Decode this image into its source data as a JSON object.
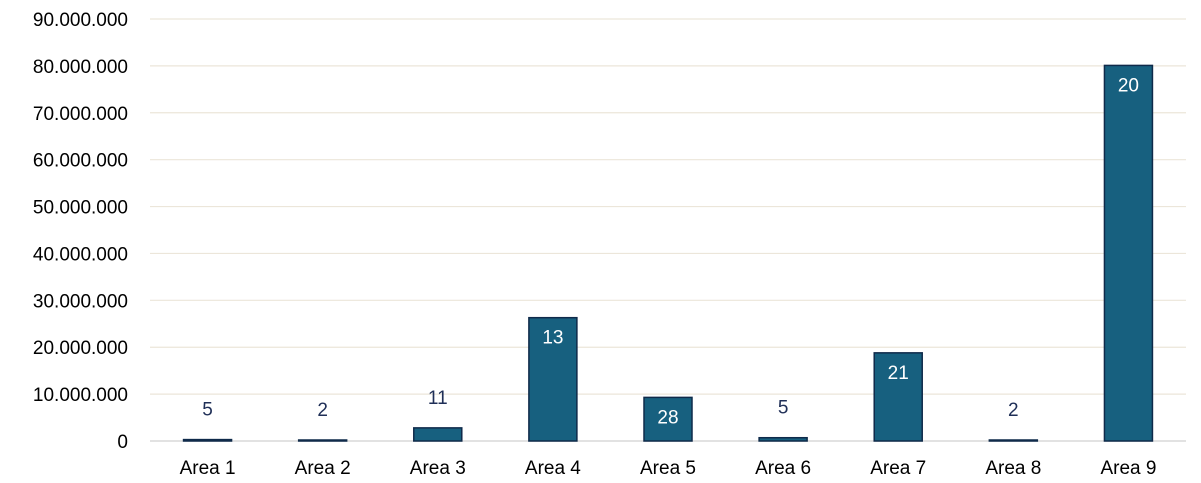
{
  "chart_data": {
    "type": "bar",
    "title": "",
    "xlabel": "",
    "ylabel": "",
    "categories": [
      "Area 1",
      "Area 2",
      "Area 3",
      "Area 4",
      "Area 5",
      "Area 6",
      "Area 7",
      "Area 8",
      "Area 9"
    ],
    "values": [
      300000,
      200000,
      2800000,
      26300000,
      9300000,
      700000,
      18800000,
      200000,
      80100000
    ],
    "data_labels": [
      "5",
      "2",
      "11",
      "13",
      "28",
      "5",
      "21",
      "2",
      "20"
    ],
    "ylim": [
      0,
      90000000
    ],
    "y_ticks": [
      0,
      10000000,
      20000000,
      30000000,
      40000000,
      50000000,
      60000000,
      70000000,
      80000000,
      90000000
    ],
    "y_tick_labels": [
      "0",
      "10.000.000",
      "20.000.000",
      "30.000.000",
      "40.000.000",
      "50.000.000",
      "60.000.000",
      "70.000.000",
      "80.000.000",
      "90.000.000"
    ],
    "grid": true,
    "legend": "none",
    "colors": {
      "bar_fill": "#17607f",
      "bar_stroke": "#0f2a4a",
      "label_inside": "#ffffff",
      "label_outside": "#1f2f57",
      "gridline": "#ece6da",
      "axis": "#d9d9d9"
    }
  }
}
